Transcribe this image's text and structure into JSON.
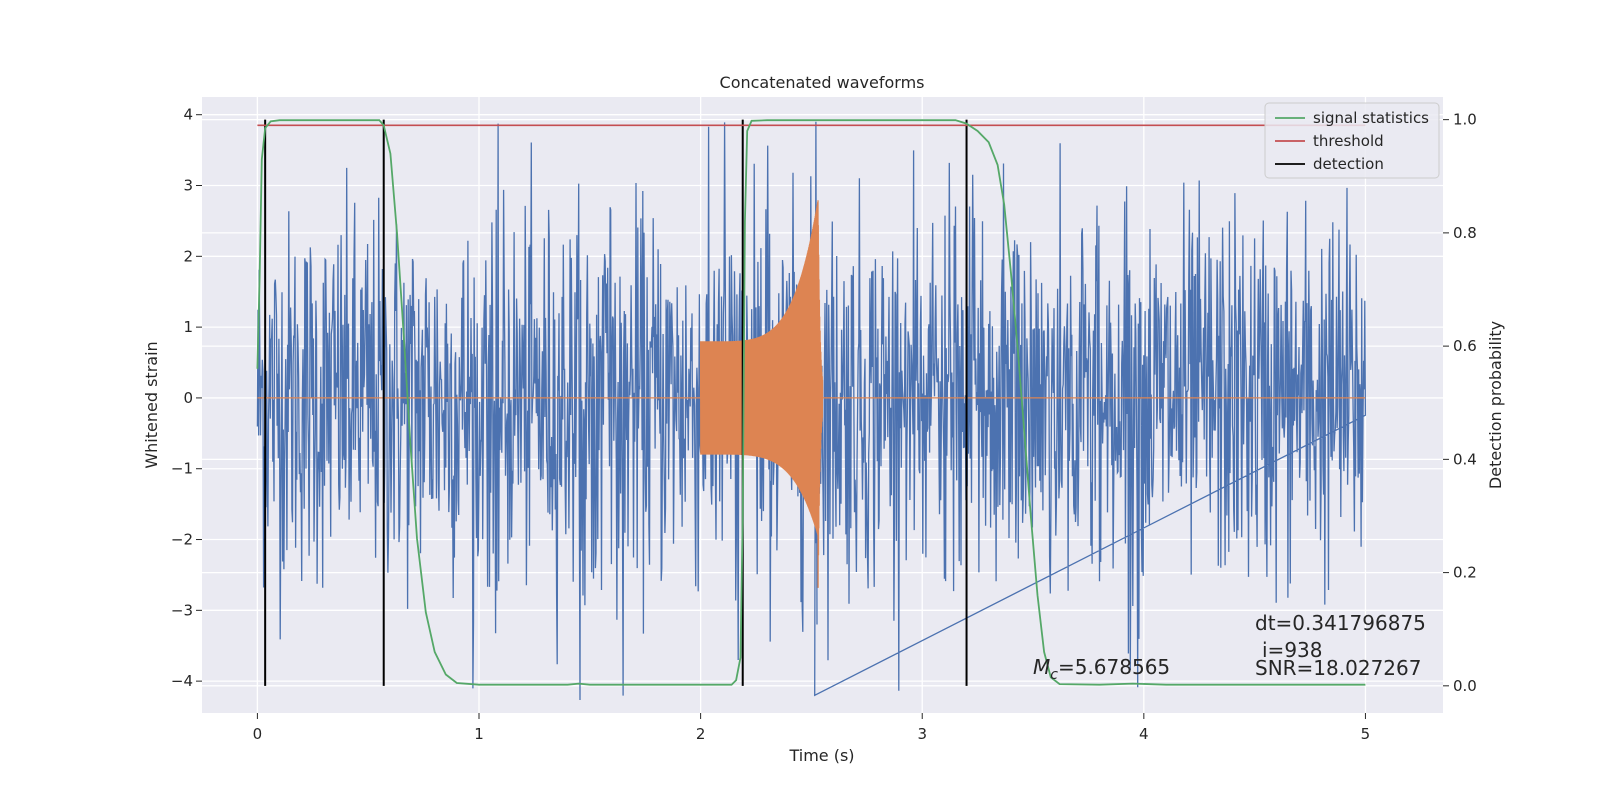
{
  "chart_data": {
    "type": "line",
    "title": "Concatenated waveforms",
    "xlabel": "Time (s)",
    "ylabel": "Whitened strain",
    "y2label": "Detection probability",
    "xlim": [
      -0.25,
      5.35
    ],
    "ylim": [
      -4.45,
      4.25
    ],
    "y2lim": [
      -0.048,
      1.04
    ],
    "xticks": [
      0,
      1,
      2,
      3,
      4,
      5
    ],
    "yticks": [
      4,
      3,
      2,
      1,
      0,
      -1,
      -2,
      -3,
      -4
    ],
    "y2ticks": [
      1.0,
      0.8,
      0.6,
      0.4,
      0.2,
      0.0
    ],
    "xtick_labels": [
      "0",
      "1",
      "2",
      "3",
      "4",
      "5"
    ],
    "ytick_labels": [
      "4",
      "3",
      "2",
      "1",
      "0",
      "−1",
      "−2",
      "−3",
      "−4"
    ],
    "y2tick_labels": [
      "1.0",
      "0.8",
      "0.6",
      "0.4",
      "0.2",
      "0.0"
    ],
    "grid": true,
    "legend_position": "top-right",
    "series": [
      {
        "name": "",
        "axis": "left",
        "color": "#4c72b0",
        "kind": "whitened-noise",
        "x_range": [
          0,
          5
        ],
        "typical_amplitude": 1.3,
        "peak_min": -4.3,
        "peak_max": 3.9
      },
      {
        "name": "",
        "axis": "left",
        "color": "#dd8452",
        "kind": "chirp",
        "start": 2.0,
        "merger": 2.53,
        "end": 2.55,
        "start_amplitude": 0.8,
        "peak_max": 2.8,
        "peak_min": -1.95
      },
      {
        "name": "signal statistics",
        "axis": "right",
        "color": "#55a868",
        "points": [
          [
            0.0,
            0.56
          ],
          [
            0.01,
            0.72
          ],
          [
            0.02,
            0.93
          ],
          [
            0.035,
            0.985
          ],
          [
            0.06,
            0.997
          ],
          [
            0.1,
            0.999
          ],
          [
            0.55,
            0.999
          ],
          [
            0.57,
            0.99
          ],
          [
            0.6,
            0.94
          ],
          [
            0.63,
            0.8
          ],
          [
            0.66,
            0.62
          ],
          [
            0.69,
            0.43
          ],
          [
            0.72,
            0.26
          ],
          [
            0.76,
            0.13
          ],
          [
            0.8,
            0.06
          ],
          [
            0.85,
            0.02
          ],
          [
            0.9,
            0.005
          ],
          [
            1.0,
            0.002
          ],
          [
            1.4,
            0.002
          ],
          [
            1.45,
            0.004
          ],
          [
            1.5,
            0.002
          ],
          [
            2.14,
            0.002
          ],
          [
            2.16,
            0.01
          ],
          [
            2.18,
            0.05
          ],
          [
            2.19,
            0.3
          ],
          [
            2.2,
            0.82
          ],
          [
            2.21,
            0.98
          ],
          [
            2.23,
            0.998
          ],
          [
            2.3,
            0.999
          ],
          [
            3.15,
            0.999
          ],
          [
            3.2,
            0.993
          ],
          [
            3.25,
            0.98
          ],
          [
            3.3,
            0.96
          ],
          [
            3.34,
            0.92
          ],
          [
            3.37,
            0.85
          ],
          [
            3.4,
            0.73
          ],
          [
            3.43,
            0.6
          ],
          [
            3.46,
            0.45
          ],
          [
            3.49,
            0.3
          ],
          [
            3.52,
            0.16
          ],
          [
            3.55,
            0.06
          ],
          [
            3.58,
            0.015
          ],
          [
            3.62,
            0.003
          ],
          [
            3.8,
            0.002
          ],
          [
            3.95,
            0.004
          ],
          [
            4.1,
            0.002
          ],
          [
            5.0,
            0.002
          ]
        ]
      },
      {
        "name": "threshold",
        "axis": "right",
        "color": "#c44e52",
        "y": 0.99,
        "x_range": [
          0,
          5
        ]
      },
      {
        "name": "detection",
        "axis": "right",
        "color": "#000000",
        "x": [
          0.035,
          0.57,
          2.19,
          3.2
        ],
        "y_range": [
          0.0,
          1.0
        ]
      }
    ],
    "annotations": {
      "mc_symbol": "M",
      "mc_sub": "c",
      "mc_value": "=5.678565",
      "dt": "dt=0.341796875",
      "i": "i=938",
      "snr": "SNR=18.027267"
    }
  }
}
